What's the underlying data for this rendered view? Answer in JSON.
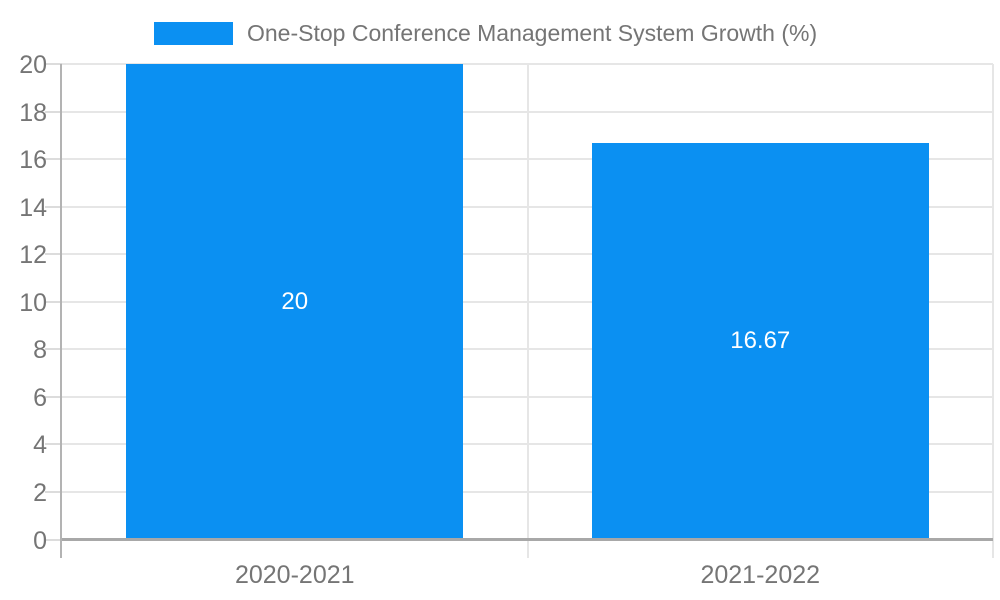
{
  "chart_data": {
    "type": "bar",
    "title": "",
    "xlabel": "",
    "ylabel": "",
    "categories": [
      "2020-2021",
      "2021-2022"
    ],
    "series": [
      {
        "name": "One-Stop Conference Management System Growth (%)",
        "values": [
          20,
          16.67
        ],
        "value_labels": [
          "20",
          "16.67"
        ],
        "color": "#0b90f2"
      }
    ],
    "ylim": [
      0,
      20
    ],
    "yticks": [
      0,
      2,
      4,
      6,
      8,
      10,
      12,
      14,
      16,
      18,
      20
    ],
    "grid": true,
    "legend_position": "top-center",
    "colors": {
      "bar": "#0b90f2",
      "bar_value_label": "#ffffff",
      "axis_text": "#757575",
      "legend_text": "#757575",
      "gridline": "#e6e6e6",
      "tick": "#dcdcdc",
      "y_axis_line": "#b3b3b3",
      "x_axis_line": "#a8a8a8",
      "background": "#ffffff"
    }
  }
}
